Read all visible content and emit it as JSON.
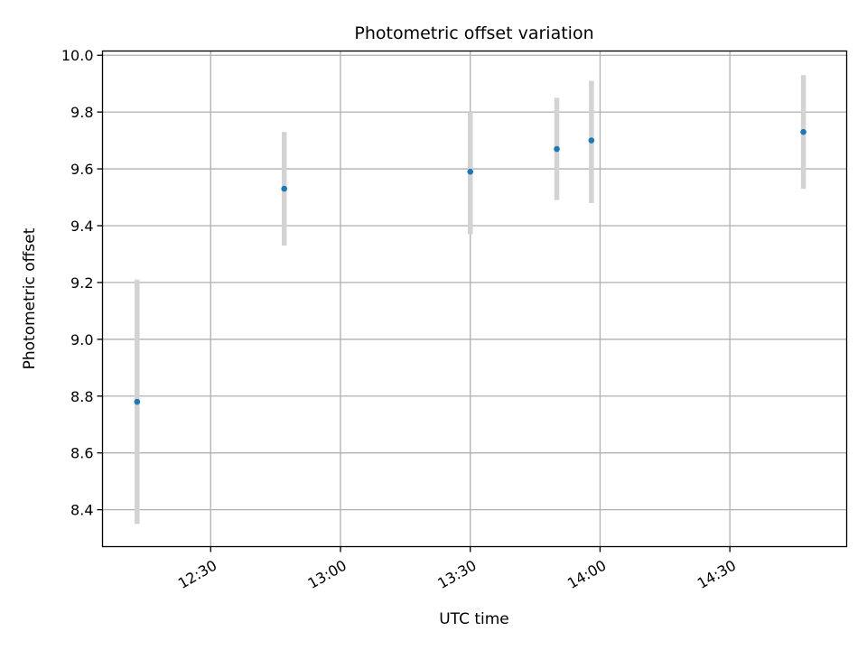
{
  "chart_data": {
    "type": "scatter",
    "title": "Photometric offset variation",
    "xlabel": "UTC time",
    "ylabel": "Photometric offset",
    "xlim": [
      "12:05",
      "14:57"
    ],
    "ylim": [
      8.27,
      10.015
    ],
    "xticks": [
      "12:30",
      "13:00",
      "13:30",
      "14:00",
      "14:30"
    ],
    "yticks": [
      "8.4",
      "8.6",
      "8.8",
      "9.0",
      "9.2",
      "9.4",
      "9.6",
      "9.8",
      "10.0"
    ],
    "grid": true,
    "points": [
      {
        "x": "12:13",
        "y": 8.78,
        "ylow": 8.35,
        "yhigh": 9.21
      },
      {
        "x": "12:47",
        "y": 9.53,
        "ylow": 9.33,
        "yhigh": 9.73
      },
      {
        "x": "13:30",
        "y": 9.59,
        "ylow": 9.37,
        "yhigh": 9.8
      },
      {
        "x": "13:50",
        "y": 9.67,
        "ylow": 9.49,
        "yhigh": 9.85
      },
      {
        "x": "13:58",
        "y": 9.7,
        "ylow": 9.48,
        "yhigh": 9.91
      },
      {
        "x": "14:47",
        "y": 9.73,
        "ylow": 9.53,
        "yhigh": 9.93
      }
    ],
    "colors": {
      "marker": "#1f77b4",
      "errorbar": "#d3d3d3",
      "grid": "#b0b0b0"
    }
  }
}
